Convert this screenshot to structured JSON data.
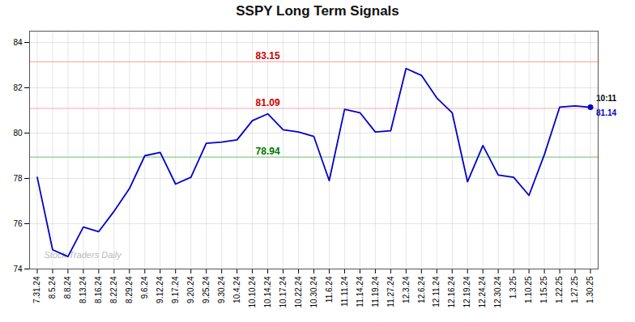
{
  "chart_data": {
    "type": "line",
    "title": "SSPY Long Term Signals",
    "categories": [
      "7.31.24",
      "8.5.24",
      "8.8.24",
      "8.13.24",
      "8.16.24",
      "8.22.24",
      "8.29.24",
      "9.6.24",
      "9.12.24",
      "9.17.24",
      "9.20.24",
      "9.25.24",
      "9.30.24",
      "10.4.24",
      "10.10.24",
      "10.14.24",
      "10.17.24",
      "10.22.24",
      "10.30.24",
      "11.6.24",
      "11.11.24",
      "11.14.24",
      "11.19.24",
      "11.27.24",
      "12.3.24",
      "12.6.24",
      "12.11.24",
      "12.16.24",
      "12.19.24",
      "12.24.24",
      "12.30.24",
      "1.3.25",
      "1.10.25",
      "1.15.25",
      "1.22.25",
      "1.27.25",
      "1.30.25"
    ],
    "values": [
      78.05,
      74.85,
      74.55,
      75.85,
      75.65,
      76.55,
      77.55,
      79.0,
      79.15,
      77.75,
      78.05,
      79.55,
      79.6,
      79.7,
      80.55,
      80.85,
      80.15,
      80.05,
      79.85,
      77.9,
      81.05,
      80.9,
      80.05,
      80.1,
      82.85,
      82.55,
      81.55,
      80.9,
      77.85,
      79.45,
      78.15,
      78.05,
      77.25,
      79.05,
      81.15,
      81.2,
      81.14
    ],
    "color": "#0000cc",
    "ylim": [
      74,
      84.5
    ],
    "yticks": [
      74,
      76,
      78,
      80,
      82,
      84
    ],
    "grid": true,
    "annotations": [
      {
        "type": "hline",
        "y": 83.15,
        "color": "#ffaaaa",
        "text": "83.15",
        "text_color": "#cc0000"
      },
      {
        "type": "hline",
        "y": 81.09,
        "color": "#ffaaaa",
        "text": "81.09",
        "text_color": "#cc0000"
      },
      {
        "type": "hline",
        "y": 78.94,
        "color": "#88cc88",
        "text": "78.94",
        "text_color": "#007700"
      },
      {
        "type": "point_label",
        "text": "10:11",
        "color": "#000000"
      },
      {
        "type": "point_label",
        "text": "81.14",
        "color": "#0000cc"
      },
      {
        "type": "watermark",
        "text": "Stock Traders Daily",
        "color": "#bbbbbb"
      }
    ]
  }
}
